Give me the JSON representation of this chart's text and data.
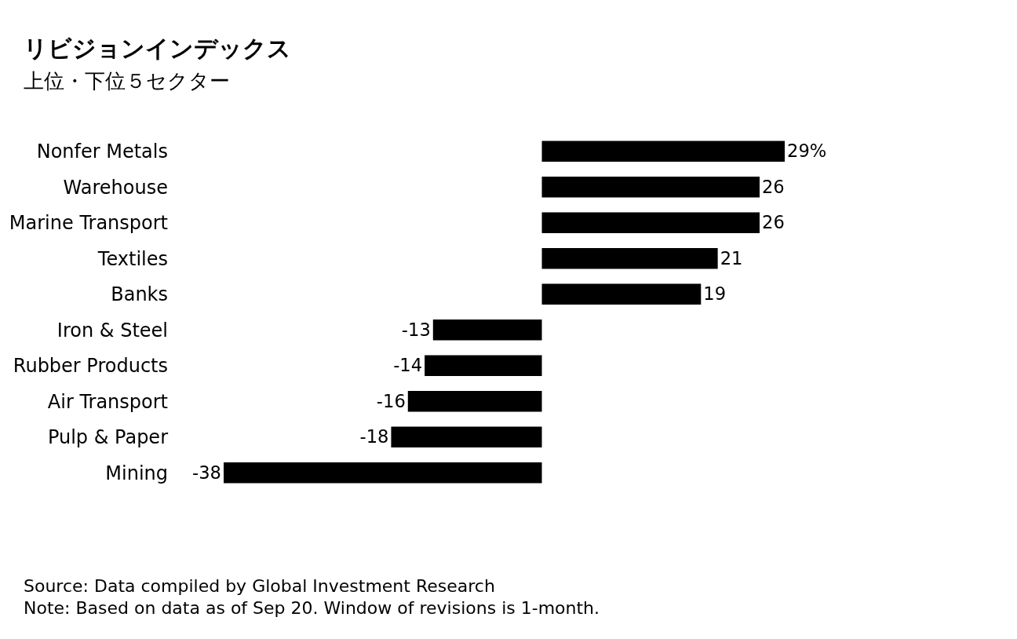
{
  "chart_data": {
    "type": "bar",
    "orientation": "horizontal",
    "title": "リビジョンインデックス",
    "subtitle": "上位・下位５セクター",
    "categories": [
      "Nonfer Metals",
      "Warehouse",
      "Marine Transport",
      "Textiles",
      "Banks",
      "Iron & Steel",
      "Rubber Products",
      "Air Transport",
      "Pulp & Paper",
      "Mining"
    ],
    "values": [
      29,
      26,
      26,
      21,
      19,
      -13,
      -14,
      -16,
      -18,
      -38
    ],
    "value_labels": [
      "29%",
      "26",
      "26",
      "21",
      "19",
      "-13",
      "-14",
      "-16",
      "-18",
      "-38"
    ],
    "color": "#000000",
    "annotations": [
      "Source: Data compiled by Global Investment Research",
      "Note: Based on data as of Sep 20. Window of revisions is 1-month."
    ]
  }
}
